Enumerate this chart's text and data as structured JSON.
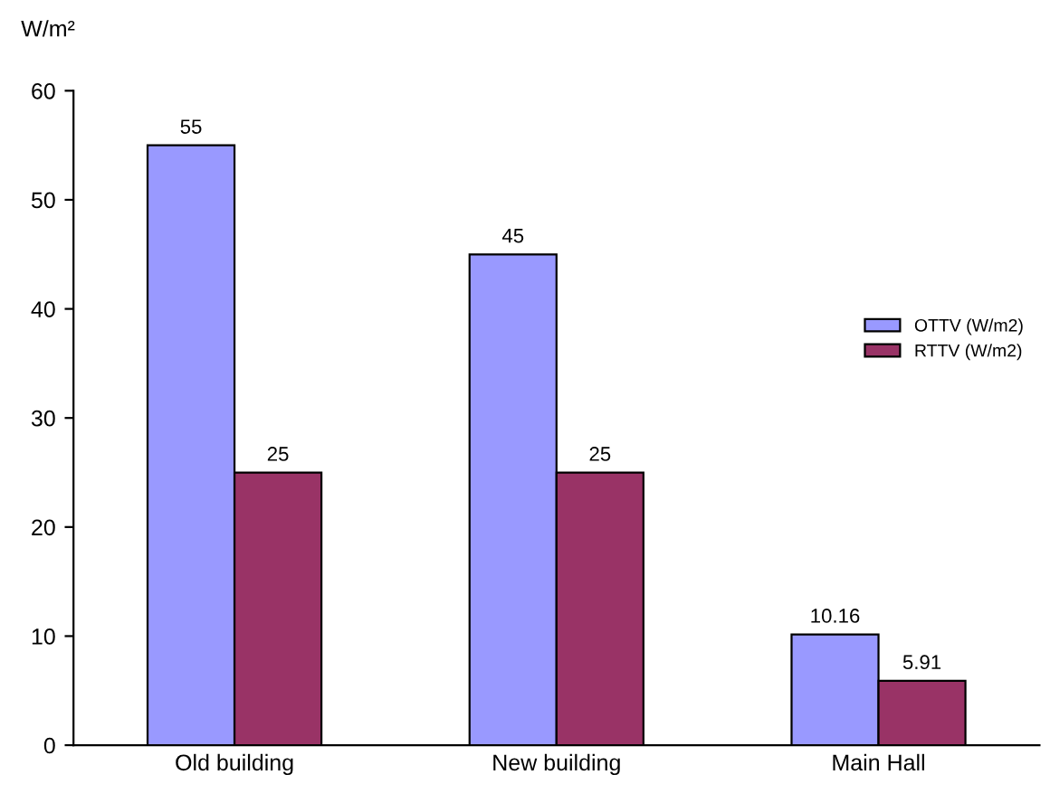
{
  "chart_data": {
    "type": "bar",
    "ylabel": "W/m²",
    "categories": [
      "Old building",
      "New building",
      "Main Hall"
    ],
    "series": [
      {
        "name": "OTTV (W/m2)",
        "color": "#9999ff",
        "values": [
          55,
          45,
          10.16
        ]
      },
      {
        "name": "RTTV (W/m2)",
        "color": "#993366",
        "values": [
          25,
          25,
          5.91
        ]
      }
    ],
    "ylim": [
      0,
      60
    ],
    "yticks": [
      0,
      10,
      20,
      30,
      40,
      50,
      60
    ],
    "grid": false,
    "legend": "right",
    "data_labels": true
  }
}
